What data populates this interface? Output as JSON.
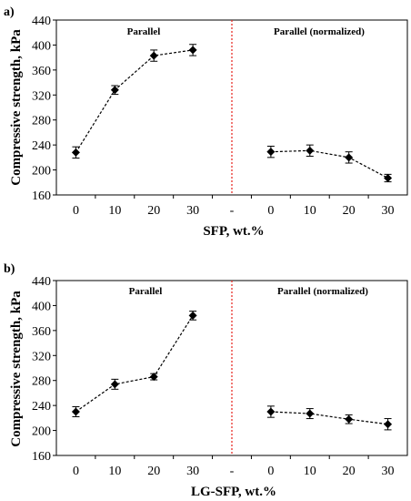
{
  "charts": [
    {
      "panel_label": "a)",
      "ylabel": "Compressive strength, kPa",
      "xlabel": "SFP, wt.%",
      "left_region_label": "Parallel",
      "right_region_label": "Parallel (normalized)"
    },
    {
      "panel_label": "b)",
      "ylabel": "Compressive strength, kPa",
      "xlabel": "LG-SFP, wt.%",
      "left_region_label": "Parallel",
      "right_region_label": "Parallel (normalized)"
    }
  ],
  "chart_data": [
    {
      "type": "scatter",
      "panel": "a)",
      "categories": [
        "0",
        "10",
        "20",
        "30",
        "-",
        "0",
        "10",
        "20",
        "30"
      ],
      "ylabel": "Compressive strength, kPa",
      "xlabel": "SFP, wt.%",
      "ylim": [
        160,
        440
      ],
      "yticks": [
        160,
        200,
        240,
        280,
        320,
        360,
        400,
        440
      ],
      "grid": false,
      "divider_after_category": 4,
      "divider_color": "#e8302a",
      "series": [
        {
          "values": [
            228,
            328,
            383,
            392
          ],
          "errors": [
            9,
            7,
            9,
            9
          ],
          "category_indices": [
            0,
            1,
            2,
            3
          ]
        },
        {
          "values": [
            229,
            231,
            220,
            187
          ],
          "errors": [
            9,
            9,
            9,
            6
          ],
          "category_indices": [
            5,
            6,
            7,
            8
          ]
        }
      ]
    },
    {
      "type": "scatter",
      "panel": "b)",
      "categories": [
        "0",
        "10",
        "20",
        "30",
        "-",
        "0",
        "10",
        "20",
        "30"
      ],
      "ylabel": "Compressive strength, kPa",
      "xlabel": "LG-SFP, wt.%",
      "ylim": [
        160,
        440
      ],
      "yticks": [
        160,
        200,
        240,
        280,
        320,
        360,
        400,
        440
      ],
      "grid": false,
      "divider_after_category": 4,
      "divider_color": "#e8302a",
      "series": [
        {
          "values": [
            230,
            274,
            286,
            384
          ],
          "errors": [
            8,
            8,
            5,
            7
          ],
          "category_indices": [
            0,
            1,
            2,
            3
          ]
        },
        {
          "values": [
            230,
            227,
            218,
            210
          ],
          "errors": [
            9,
            8,
            7,
            9
          ],
          "category_indices": [
            5,
            6,
            7,
            8
          ]
        }
      ]
    }
  ]
}
